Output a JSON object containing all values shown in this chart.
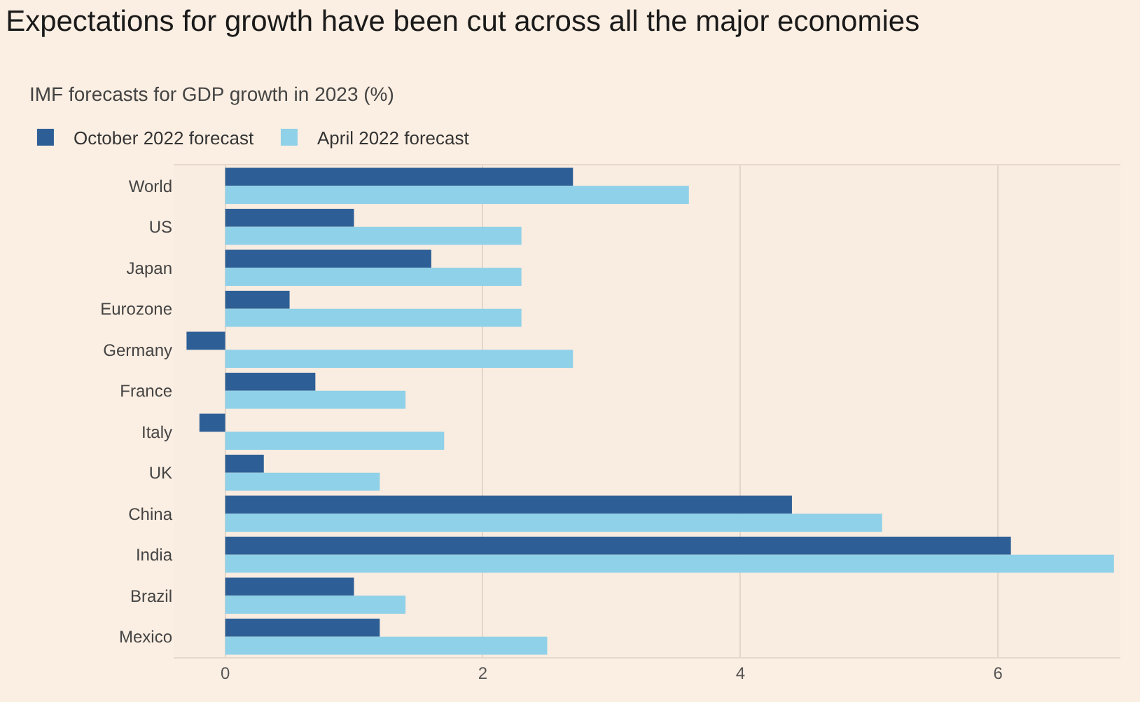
{
  "chart_data": {
    "type": "bar",
    "orientation": "horizontal",
    "title": "Expectations for growth have been cut across all the major economies",
    "subtitle": "IMF forecasts for GDP growth in 2023 (%)",
    "categories": [
      "World",
      "US",
      "Japan",
      "Eurozone",
      "Germany",
      "France",
      "Italy",
      "UK",
      "China",
      "India",
      "Brazil",
      "Mexico"
    ],
    "series": [
      {
        "name": "October 2022 forecast",
        "color": "#2d5f96",
        "values": [
          2.7,
          1.0,
          1.6,
          0.5,
          -0.3,
          0.7,
          -0.2,
          0.3,
          4.4,
          6.1,
          1.0,
          1.2
        ]
      },
      {
        "name": "April 2022 forecast",
        "color": "#8fd1e8",
        "values": [
          3.6,
          2.3,
          2.3,
          2.3,
          2.7,
          1.4,
          1.7,
          1.2,
          5.1,
          6.9,
          1.4,
          2.5
        ]
      }
    ],
    "xlim": [
      -0.4,
      6.95
    ],
    "xticks": [
      0,
      2,
      4,
      6
    ],
    "grid": "x",
    "legend": "top left"
  }
}
